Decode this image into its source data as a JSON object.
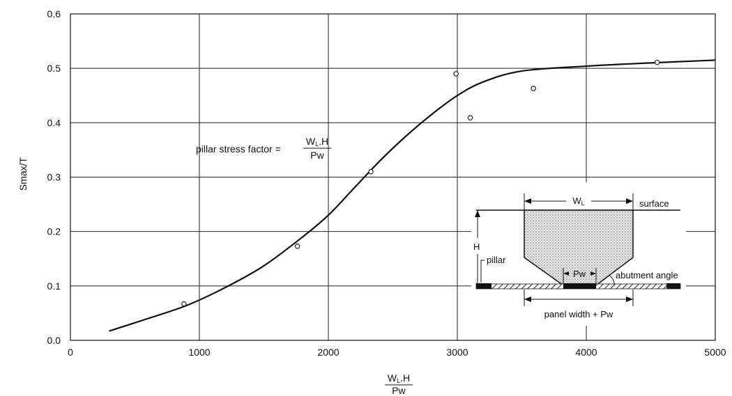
{
  "chart_data": {
    "type": "scatter",
    "title": "",
    "xlabel": {
      "num_main": "W",
      "num_sub": "L",
      "num_rest": ".H",
      "den": "Pw"
    },
    "ylabel": "Smax/T",
    "xlim": [
      0,
      5000
    ],
    "ylim": [
      0,
      0.6
    ],
    "x_ticks": [
      "0",
      "1000",
      "2000",
      "3000",
      "4000",
      "5000"
    ],
    "y_ticks": [
      "0.0",
      "0.1",
      "0.2",
      "0.3",
      "0.4",
      "0.5",
      "0.6"
    ],
    "grid": true,
    "points": [
      {
        "x": 880,
        "y": 0.067
      },
      {
        "x": 1760,
        "y": 0.173
      },
      {
        "x": 2330,
        "y": 0.31
      },
      {
        "x": 2990,
        "y": 0.49
      },
      {
        "x": 3100,
        "y": 0.409
      },
      {
        "x": 3590,
        "y": 0.463
      },
      {
        "x": 4550,
        "y": 0.511
      }
    ],
    "curve": [
      {
        "x": 300,
        "y": 0.017
      },
      {
        "x": 600,
        "y": 0.04
      },
      {
        "x": 900,
        "y": 0.064
      },
      {
        "x": 1200,
        "y": 0.097
      },
      {
        "x": 1500,
        "y": 0.137
      },
      {
        "x": 1800,
        "y": 0.19
      },
      {
        "x": 2000,
        "y": 0.23
      },
      {
        "x": 2200,
        "y": 0.28
      },
      {
        "x": 2400,
        "y": 0.33
      },
      {
        "x": 2600,
        "y": 0.375
      },
      {
        "x": 2800,
        "y": 0.415
      },
      {
        "x": 3000,
        "y": 0.45
      },
      {
        "x": 3200,
        "y": 0.475
      },
      {
        "x": 3500,
        "y": 0.495
      },
      {
        "x": 4000,
        "y": 0.504
      },
      {
        "x": 4500,
        "y": 0.51
      },
      {
        "x": 5000,
        "y": 0.515
      }
    ],
    "annotation": {
      "prefix": "pillar stress factor =",
      "num_main": "W",
      "num_sub": "L",
      "num_rest": ".H",
      "den": "Pw"
    }
  },
  "inset": {
    "wl_main": "W",
    "wl_sub": "L",
    "surface": "surface",
    "h": "H",
    "pillar": "pillar",
    "pw": "Pw",
    "abutment": "abutment angle",
    "panel": "panel width + Pw"
  }
}
